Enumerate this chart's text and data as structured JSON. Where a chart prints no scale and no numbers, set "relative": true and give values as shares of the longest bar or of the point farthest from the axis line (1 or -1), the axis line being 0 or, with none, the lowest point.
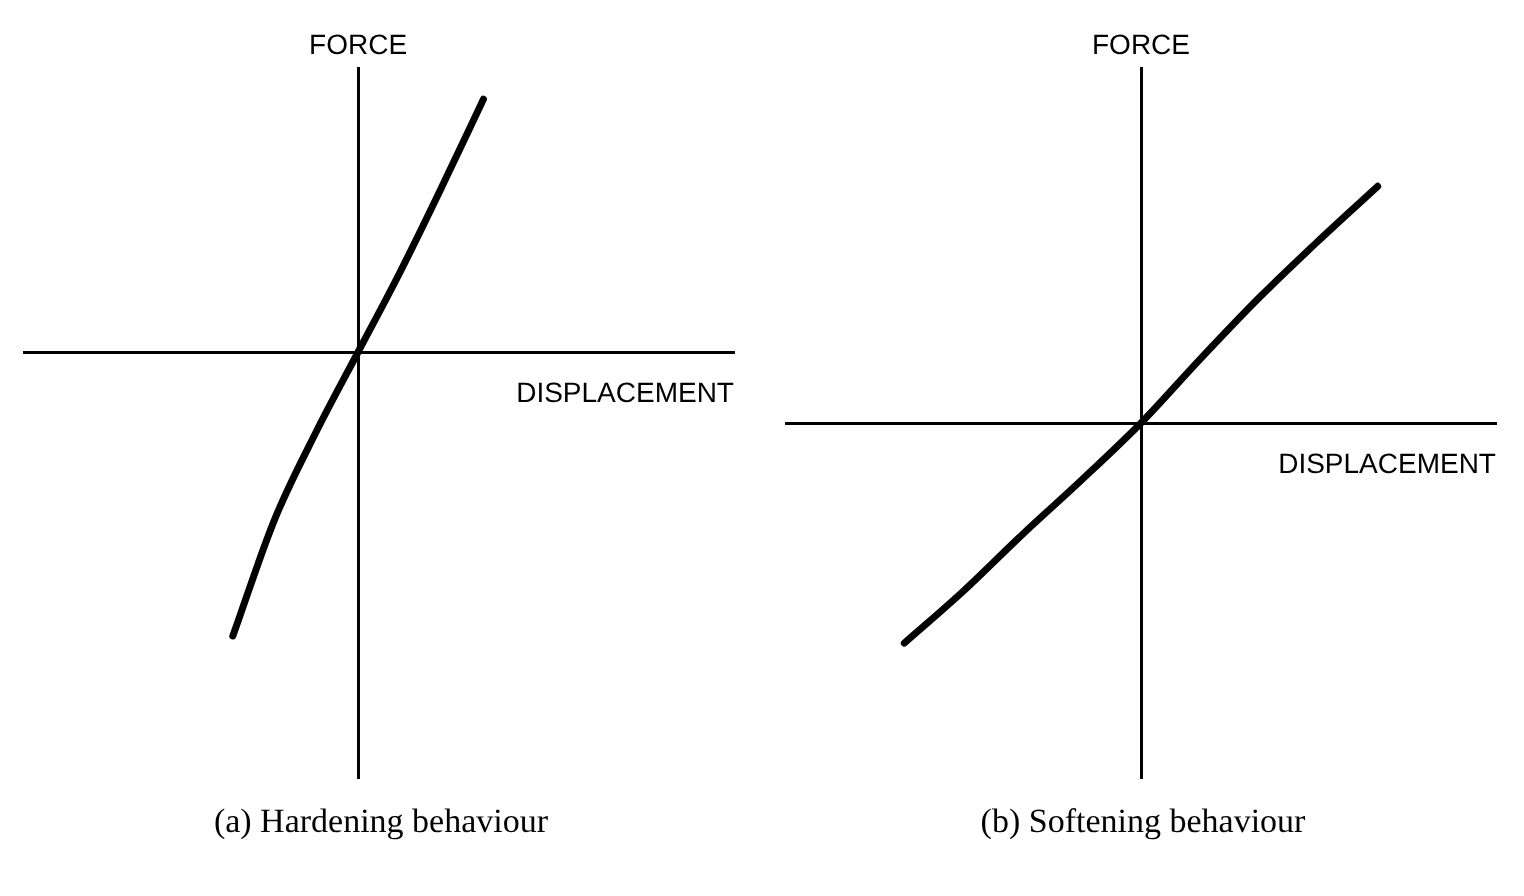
{
  "chart_data": [
    {
      "type": "line",
      "title": "(a) Hardening behaviour",
      "xlabel": "DISPLACEMENT",
      "ylabel": "FORCE",
      "relative": true,
      "categories": [
        null,
        null,
        null,
        null,
        null,
        null,
        null,
        null,
        null,
        null,
        null,
        null,
        null,
        null,
        null,
        null,
        null,
        null
      ],
      "series": [
        {
          "color": "#000000",
          "values": [
            null,
            null,
            null,
            null,
            null,
            -1,
            -0.59,
            -0.28,
            0,
            0.28,
            0.58,
            0.89,
            null,
            null,
            null,
            null,
            null,
            null
          ]
        }
      ]
    },
    {
      "type": "line",
      "title": "(b) Softening behaviour",
      "xlabel": "DISPLACEMENT",
      "ylabel": "FORCE",
      "relative": true,
      "categories": [
        null,
        null,
        null,
        null,
        null,
        null,
        null,
        null,
        null,
        null,
        null,
        null,
        null
      ],
      "series": [
        {
          "color": "#000000",
          "values": [
            null,
            null,
            -0.93,
            -0.71,
            -0.47,
            -0.24,
            0,
            0.27,
            0.53,
            0.77,
            1,
            null,
            null
          ]
        }
      ]
    }
  ]
}
